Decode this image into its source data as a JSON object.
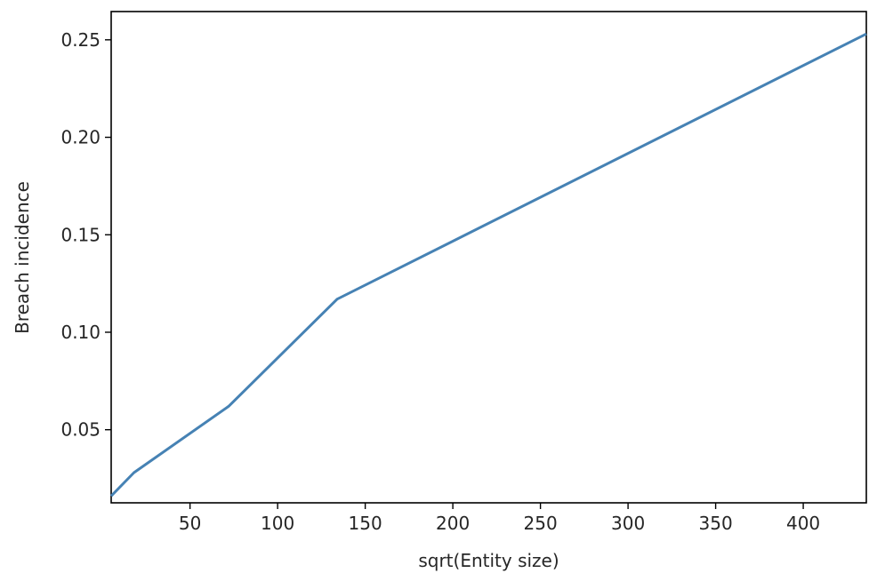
{
  "chart_data": {
    "type": "line",
    "title": "",
    "xlabel": "sqrt(Entity size)",
    "ylabel": "Breach incidence",
    "xlim": [
      5,
      436
    ],
    "ylim": [
      0.0125,
      0.2645
    ],
    "xticks": [
      50,
      100,
      150,
      200,
      250,
      300,
      350,
      400
    ],
    "yticks": [
      0.05,
      0.1,
      0.15,
      0.2,
      0.25
    ],
    "xtick_labels": [
      "50",
      "100",
      "150",
      "200",
      "250",
      "300",
      "350",
      "400"
    ],
    "ytick_labels": [
      "0.05",
      "0.10",
      "0.15",
      "0.20",
      "0.25"
    ],
    "grid": false,
    "series": [
      {
        "color": "#4682b4",
        "x": [
          5,
          18,
          72,
          134,
          436
        ],
        "y": [
          0.016,
          0.028,
          0.062,
          0.117,
          0.253
        ]
      }
    ]
  }
}
